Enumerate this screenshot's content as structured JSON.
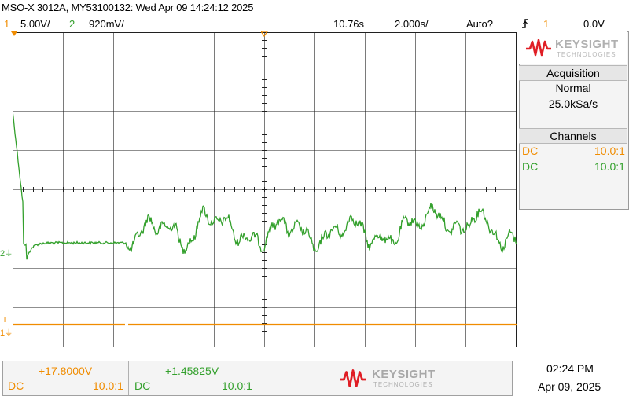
{
  "header": {
    "title": "MSO-X 3012A, MY53100132: Wed Apr 09 14:24:12 2025",
    "ch1_num": "1",
    "ch1_scale": "5.00V/",
    "ch2_num": "2",
    "ch2_scale": "920mV/",
    "time_delay": "10.76s",
    "time_scale": "2.000s/",
    "trigger_mode": "Auto?",
    "trigger_icon": "edge-trigger-icon",
    "trigger_channel": "1",
    "trigger_level": "0.0V"
  },
  "brand": {
    "name": "KEYSIGHT",
    "sub": "TECHNOLOGIES"
  },
  "side_panel": {
    "acquisition_title": "Acquisition",
    "acq_mode": "Normal",
    "sample_rate": "25.0kSa/s",
    "channels_title": "Channels",
    "channels": [
      {
        "coupling": "DC",
        "probe": "10.0:1",
        "color": "#f08c00"
      },
      {
        "coupling": "DC",
        "probe": "10.0:1",
        "color": "#33a02c"
      }
    ]
  },
  "markers": {
    "ch2_ground": "2",
    "ch1_ground": "1",
    "trigger_T": "T"
  },
  "bottom": {
    "ch1_offset": "+17.8000V",
    "ch1_coupling": "DC",
    "ch1_probe": "10.0:1",
    "ch2_offset": "+1.45825V",
    "ch2_coupling": "DC",
    "ch2_probe": "10.0:1"
  },
  "clock": {
    "time": "02:24 PM",
    "date": "Apr 09, 2025"
  },
  "colors": {
    "ch1": "#f08c00",
    "ch2": "#33a02c",
    "brand_red": "#e01e25",
    "grid": "#202020"
  }
}
